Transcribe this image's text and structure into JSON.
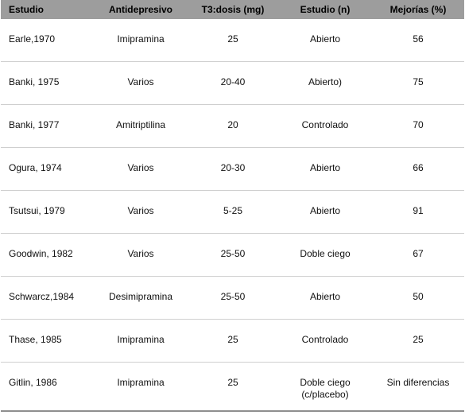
{
  "table": {
    "headers": [
      "Estudio",
      "Antidepresivo",
      "T3:dosis (mg)",
      "Estudio (n)",
      "Mejorías (%)"
    ],
    "rows": [
      [
        "Earle,1970",
        "Imipramina",
        "25",
        "Abierto",
        "56"
      ],
      [
        "Banki, 1975",
        "Varios",
        "20-40",
        "Abierto)",
        "75"
      ],
      [
        "Banki, 1977",
        "Amitriptilina",
        "20",
        "Controlado",
        "70"
      ],
      [
        "Ogura, 1974",
        "Varios",
        "20-30",
        "Abierto",
        "66"
      ],
      [
        "Tsutsui, 1979",
        "Varios",
        "5-25",
        "Abierto",
        "91"
      ],
      [
        "Goodwin, 1982",
        "Varios",
        "25-50",
        "Doble ciego",
        "67"
      ],
      [
        "Schwarcz,1984",
        "Desimipramina",
        "25-50",
        "Abierto",
        "50"
      ],
      [
        "Thase, 1985",
        "Imipramina",
        "25",
        "Controlado",
        "25"
      ],
      [
        "Gitlin, 1986",
        "Imipramina",
        "25",
        "Doble ciego\n(c/placebo)",
        "Sin diferencias"
      ]
    ]
  },
  "colors": {
    "header_bg": "#9d9d9d",
    "row_divider": "#cfcfcf"
  }
}
